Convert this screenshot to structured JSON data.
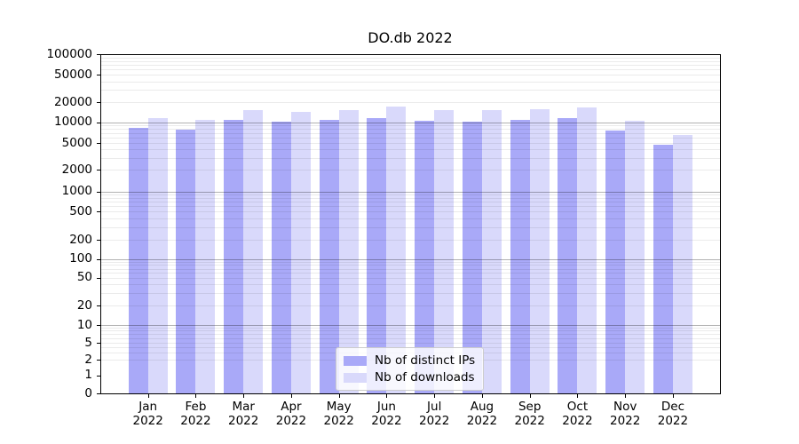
{
  "title": "DO.db 2022",
  "chart_data": {
    "type": "bar",
    "title": "DO.db 2022",
    "yscale": "symlog",
    "ylim": [
      0,
      100000
    ],
    "yticks": [
      0,
      1,
      2,
      5,
      10,
      20,
      50,
      100,
      200,
      500,
      1000,
      2000,
      5000,
      10000,
      20000,
      50000,
      100000
    ],
    "grid": "horizontal, minor+major, drawn over bars",
    "legend_position": "lower center",
    "categories": [
      "Jan 2022",
      "Feb 2022",
      "Mar 2022",
      "Apr 2022",
      "May 2022",
      "Jun 2022",
      "Jul 2022",
      "Aug 2022",
      "Sep 2022",
      "Oct 2022",
      "Nov 2022",
      "Dec 2022"
    ],
    "series": [
      {
        "name": "Nb of distinct IPs",
        "color": "#a9a9f8",
        "values": [
          8300,
          7800,
          10800,
          10200,
          10800,
          11700,
          10500,
          10300,
          10800,
          11400,
          7500,
          4700
        ]
      },
      {
        "name": "Nb of downloads",
        "color": "#d9d9fb",
        "values": [
          11400,
          10800,
          15400,
          14400,
          15300,
          17200,
          15200,
          15300,
          15800,
          16900,
          10400,
          6600
        ]
      }
    ]
  }
}
